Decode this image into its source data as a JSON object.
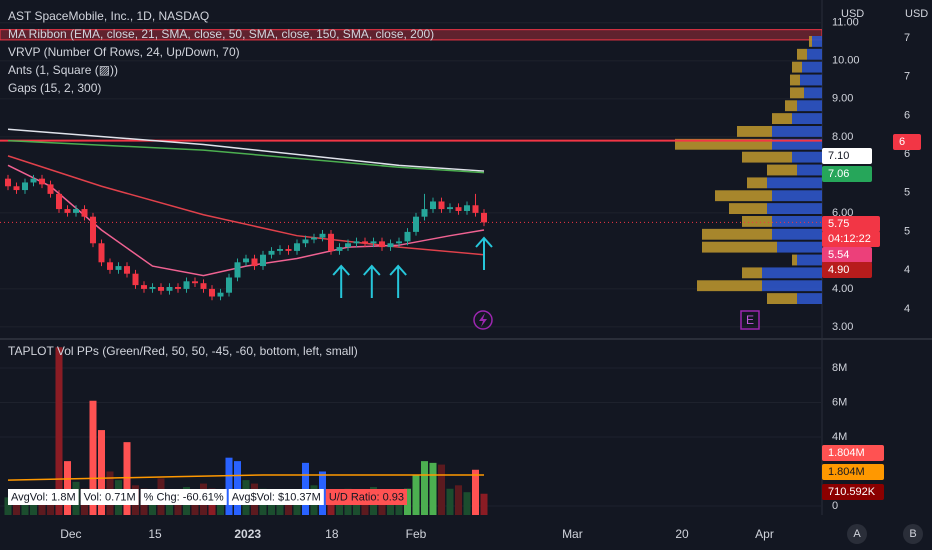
{
  "chart_data": [
    {
      "type": "candlestick",
      "title": "AST SpaceMobile, Inc., 1D, NASDAQ",
      "indicators": [
        "MA Ribbon (EMA, close, 21, SMA, close, 50, SMA, close, 150, SMA, close, 200)",
        "VRVP (Number Of Rows, 24, Up/Down, 70)",
        "Ants (1, Square (▨))",
        "Gaps (15, 2, 300)"
      ],
      "axis_unit": "USD",
      "open": [
        6.9,
        6.7,
        6.6,
        6.8,
        6.9,
        6.75,
        6.5,
        6.1,
        6.0,
        6.1,
        5.9,
        5.2,
        4.7,
        4.5,
        4.6,
        4.4,
        4.1,
        4.0,
        4.05,
        3.95,
        4.05,
        4.0,
        4.2,
        4.15,
        4.0,
        3.8,
        3.9,
        4.3,
        4.7,
        4.8,
        4.6,
        4.9,
        5.0,
        5.05,
        5.0,
        5.2,
        5.3,
        5.35,
        5.45,
        5.0,
        5.1,
        5.2,
        5.25,
        5.2,
        5.25,
        5.1,
        5.2,
        5.25,
        5.5,
        5.9,
        6.1,
        6.3,
        6.1,
        6.15,
        6.05,
        6.2,
        6.0
      ],
      "high": [
        7.0,
        6.8,
        6.9,
        7.0,
        7.0,
        6.85,
        6.6,
        6.2,
        6.2,
        6.2,
        6.0,
        5.3,
        4.8,
        4.7,
        4.7,
        4.5,
        4.2,
        4.15,
        4.15,
        4.15,
        4.15,
        4.3,
        4.3,
        4.25,
        4.1,
        4.0,
        4.4,
        4.8,
        4.9,
        4.9,
        5.0,
        5.1,
        5.15,
        5.15,
        5.3,
        5.4,
        5.45,
        5.55,
        5.55,
        5.2,
        5.3,
        5.35,
        5.35,
        5.35,
        5.35,
        5.3,
        5.35,
        5.6,
        6.0,
        6.5,
        6.4,
        6.4,
        6.25,
        6.25,
        6.3,
        6.5,
        6.1
      ],
      "low": [
        6.6,
        6.5,
        6.5,
        6.7,
        6.65,
        6.4,
        6.0,
        5.9,
        5.9,
        5.8,
        5.1,
        4.6,
        4.4,
        4.4,
        4.3,
        4.0,
        3.9,
        3.9,
        3.85,
        3.85,
        3.9,
        3.9,
        4.05,
        3.9,
        3.7,
        3.7,
        3.8,
        4.2,
        4.6,
        4.5,
        4.5,
        4.8,
        4.9,
        4.9,
        4.9,
        5.1,
        5.2,
        5.25,
        4.9,
        4.9,
        5.0,
        5.1,
        5.1,
        5.1,
        5.0,
        5.0,
        5.1,
        5.15,
        5.4,
        5.8,
        6.0,
        6.0,
        6.0,
        5.95,
        5.95,
        5.9,
        5.65
      ],
      "close": [
        6.7,
        6.6,
        6.8,
        6.9,
        6.75,
        6.5,
        6.1,
        6.0,
        6.1,
        5.9,
        5.2,
        4.7,
        4.5,
        4.6,
        4.4,
        4.1,
        4.0,
        4.05,
        3.95,
        4.05,
        4.0,
        4.2,
        4.15,
        4.0,
        3.8,
        3.9,
        4.3,
        4.7,
        4.8,
        4.6,
        4.9,
        5.0,
        5.05,
        5.0,
        5.2,
        5.3,
        5.35,
        5.45,
        5.0,
        5.1,
        5.2,
        5.25,
        5.2,
        5.25,
        5.1,
        5.2,
        5.25,
        5.5,
        5.9,
        6.1,
        6.3,
        6.1,
        6.15,
        6.05,
        6.2,
        6.0,
        5.75
      ],
      "up_color": "#26a69a",
      "down_color": "#f23645",
      "ylim": [
        2.84,
        11.6
      ],
      "yticks": [
        {
          "value": 11,
          "label": "11.00"
        },
        {
          "value": 10,
          "label": "10.00"
        },
        {
          "value": 9,
          "label": "9.00"
        },
        {
          "value": 8,
          "label": "8.00"
        },
        {
          "value": 6,
          "label": "6.00"
        },
        {
          "value": 4,
          "label": "4.00"
        },
        {
          "value": 3,
          "label": "3.00"
        }
      ],
      "xticks": [
        {
          "value": 7.4,
          "label": "Dec"
        },
        {
          "value": 17.3,
          "label": "15"
        },
        {
          "value": 28.2,
          "label": "2023"
        },
        {
          "value": 38.1,
          "label": "18"
        },
        {
          "value": 48,
          "label": "Feb"
        },
        {
          "value": 66.4,
          "label": "Mar"
        },
        {
          "value": 79.3,
          "label": "20"
        },
        {
          "value": 89,
          "label": "Apr"
        }
      ],
      "moving_averages": [
        {
          "color": "#e0e3eb",
          "x": [
            0,
            23,
            46,
            56
          ],
          "values": [
            8.2,
            7.8,
            7.25,
            7.1
          ]
        },
        {
          "color": "#4caf50",
          "x": [
            0,
            23,
            46,
            56
          ],
          "values": [
            7.9,
            7.65,
            7.2,
            7.06
          ]
        },
        {
          "color": "#e0414b",
          "x": [
            0,
            11,
            23,
            34,
            46,
            56
          ],
          "values": [
            7.5,
            6.7,
            5.95,
            5.4,
            5.1,
            4.9
          ]
        },
        {
          "color": "#f06292",
          "x": [
            0,
            5,
            11,
            17,
            23,
            28,
            34,
            40,
            46,
            52,
            56
          ],
          "values": [
            7.25,
            6.7,
            5.55,
            4.6,
            4.35,
            4.6,
            4.8,
            5.1,
            5.15,
            5.4,
            5.55
          ]
        }
      ],
      "hlines": [
        {
          "value": 7.9,
          "color": "#f23645"
        }
      ],
      "band": {
        "range": [
          10.55,
          10.82
        ],
        "color": "#f23645"
      },
      "volume_profile": {
        "up_color": "#2f55c8",
        "down_color": "#b8922e",
        "up": [
          10,
          15,
          20,
          22,
          18,
          25,
          30,
          50,
          50,
          30,
          25,
          55,
          50,
          55,
          50,
          50,
          45,
          25,
          60,
          60,
          25
        ],
        "down": [
          3,
          10,
          10,
          10,
          14,
          12,
          20,
          35,
          97,
          50,
          30,
          20,
          57,
          38,
          30,
          70,
          75,
          5,
          20,
          65,
          30
        ]
      },
      "price_badges": [
        {
          "label": "6",
          "color": "#f23645"
        },
        {
          "label": "7.10",
          "color": "#ffffff"
        },
        {
          "label": "7.06",
          "color": "#26a65a"
        },
        {
          "label": "5.75",
          "color": "#f23645"
        },
        {
          "label": "04:12:22",
          "color": "#f23645"
        },
        {
          "label": "5.54",
          "color": "#ec407a"
        },
        {
          "label": "4.90",
          "color": "#b71c1c"
        }
      ],
      "scale2": {
        "header": "USD",
        "labels": [
          "7",
          "7",
          "6",
          "6",
          "5",
          "5",
          "4",
          "4"
        ]
      },
      "arrows_x": [
        39.2,
        42.8,
        45.9,
        56
      ],
      "events": [
        "E"
      ]
    },
    {
      "type": "volume",
      "title": "TAPLOT Vol PPs (Green/Red, 50, 50, -45, -60, bottom, left, small)",
      "values": [
        0.5,
        0.4,
        0.6,
        0.3,
        0.5,
        0.7,
        9.2,
        2.6,
        1.4,
        1.0,
        6.1,
        4.4,
        2.0,
        1.5,
        3.7,
        1.2,
        1.0,
        0.8,
        1.6,
        0.6,
        0.9,
        1.1,
        0.8,
        1.3,
        1.0,
        0.7,
        2.8,
        2.6,
        1.5,
        1.3,
        1.0,
        0.9,
        0.8,
        0.7,
        0.6,
        2.5,
        1.2,
        2.0,
        0.9,
        0.8,
        1.0,
        0.7,
        0.6,
        1.1,
        0.9,
        0.8,
        0.7,
        1.0,
        1.8,
        2.6,
        2.5,
        2.4,
        1.0,
        1.2,
        0.8,
        2.1,
        0.71
      ],
      "colors": [
        "#1b4d2e",
        "#5c1a1f",
        "#1b4d2e",
        "#1b4d2e",
        "#5c1a1f",
        "#5c1a1f",
        "#8b1c24",
        "#ff5252",
        "#1b4d2e",
        "#5c1a1f",
        "#ff5252",
        "#ff5252",
        "#5c1a1f",
        "#1b4d2e",
        "#ff5252",
        "#5c1a1f",
        "#5c1a1f",
        "#1b4d2e",
        "#5c1a1f",
        "#1b4d2e",
        "#5c1a1f",
        "#1b4d2e",
        "#5c1a1f",
        "#5c1a1f",
        "#8b1c24",
        "#1b4d2e",
        "#2962ff",
        "#2962ff",
        "#1b4d2e",
        "#5c1a1f",
        "#1b4d2e",
        "#1b4d2e",
        "#1b4d2e",
        "#5c1a1f",
        "#1b4d2e",
        "#2962ff",
        "#1b4d2e",
        "#2962ff",
        "#8b1c24",
        "#1b4d2e",
        "#1b4d2e",
        "#1b4d2e",
        "#5c1a1f",
        "#1b4d2e",
        "#5c1a1f",
        "#1b4d2e",
        "#1b4d2e",
        "#4caf50",
        "#4caf50",
        "#4caf50",
        "#4caf50",
        "#5c1a1f",
        "#1b4d2e",
        "#5c1a1f",
        "#1b4d2e",
        "#ff5252",
        "#8b1c24"
      ],
      "ylim": [
        0,
        9.33
      ],
      "yticks": [
        {
          "value": 8,
          "label": "8M"
        },
        {
          "value": 6,
          "label": "6M"
        },
        {
          "value": 4,
          "label": "4M"
        },
        0
      ],
      "avg_line": {
        "color": "#ff9800",
        "x": [
          0,
          10,
          20,
          30,
          40,
          50,
          56
        ],
        "values": [
          1.5,
          1.6,
          1.7,
          1.8,
          1.8,
          1.8,
          1.8
        ]
      },
      "stats": [
        "AvgVol: 1.8M",
        "Vol: 0.71M",
        "% Chg: -60.61%",
        "Avg$Vol: $10.37M",
        "U/D Ratio: 0.93"
      ],
      "badges": [
        {
          "label": "1.804M",
          "color": "#ff5252"
        },
        {
          "label": "1.804M",
          "color": "#ff9800"
        },
        {
          "label": "710.592K",
          "color": "#8b0000"
        }
      ]
    }
  ],
  "controls": [
    "A",
    "B"
  ]
}
